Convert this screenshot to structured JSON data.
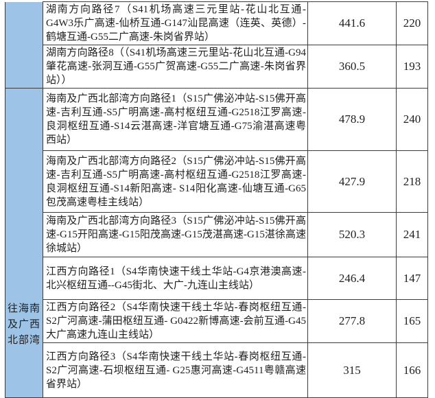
{
  "table": {
    "groups": {
      "top_label": "",
      "bottom_label": "往海南\n及广西\n北部湾"
    },
    "rows": [
      {
        "route": "湖南方向路径7（S41机场高速三元里站-花山北互通-G4W3乐广高速-仙桥互通-G147汕昆高速（连英、英德）-鹤塘互通-G55二广高速-朱岗省界站）",
        "value_1": "441.6",
        "value_2": "220"
      },
      {
        "route": "湖南方向路径8（（S41机场高速三元里站-花山北互通-G94肇花高速-张洞互通-G55广贺高速-G55二广高速-朱岗省界站））",
        "value_1": "360.5",
        "value_2": "193"
      },
      {
        "route": "海南及广西北部湾方向路径1（S15广佛泌冲站-S15佛开高速-吉利互通-S5广明高速-高村枢纽互通-G2518江罗高速-良洞枢纽互通-S14云湛高速-洋官塘互通-G75渝湛高速粤西站）",
        "value_1": "478.9",
        "value_2": "240"
      },
      {
        "route": "海南及广西北部湾方向路径2（S15广佛泌冲站-S15佛开高速-吉利互通-S5广明高速-高村枢纽互通-G2518江罗高速-良洞枢纽互通-S14新阳高速- S14阳化高速-仙塘互通-G65包茂高速粤桂主线站）",
        "value_1": "427.9",
        "value_2": "218"
      },
      {
        "route": "海南及广西北部湾方向路径3（S15广佛泌冲站-S15佛开高速-G15开阳高速-G15阳茂高速-G15茂湛高速-G15湛徐高速徐城站）",
        "value_1": "520.3",
        "value_2": "241"
      },
      {
        "route": "江西方向路径1（S4华南快速干线土华站-G4京港澳高速-北兴枢纽互通--G45街北、大广-九连山主线站）",
        "value_1": "246.4",
        "value_2": "147"
      },
      {
        "route": "江西方向路径2（S4华南快速干线土华站-春岗枢纽互通-S2广河高速-蒲田枢纽互通- G0422新博高速-会前互通-G45大广高速九连山主线站）",
        "value_1": "277.8",
        "value_2": "165"
      },
      {
        "route": "江西方向路径3（S4华南快速干线土华站-春岗枢纽互通-S2广河高速-石坝枢纽互通- G25惠河高速-G4511粤赣高速省界站）",
        "value_1": "315",
        "value_2": "166"
      }
    ],
    "colors": {
      "group_bg": "#9dc3e6",
      "border": "#3b3b3b",
      "text": "#1f1f1f"
    }
  }
}
